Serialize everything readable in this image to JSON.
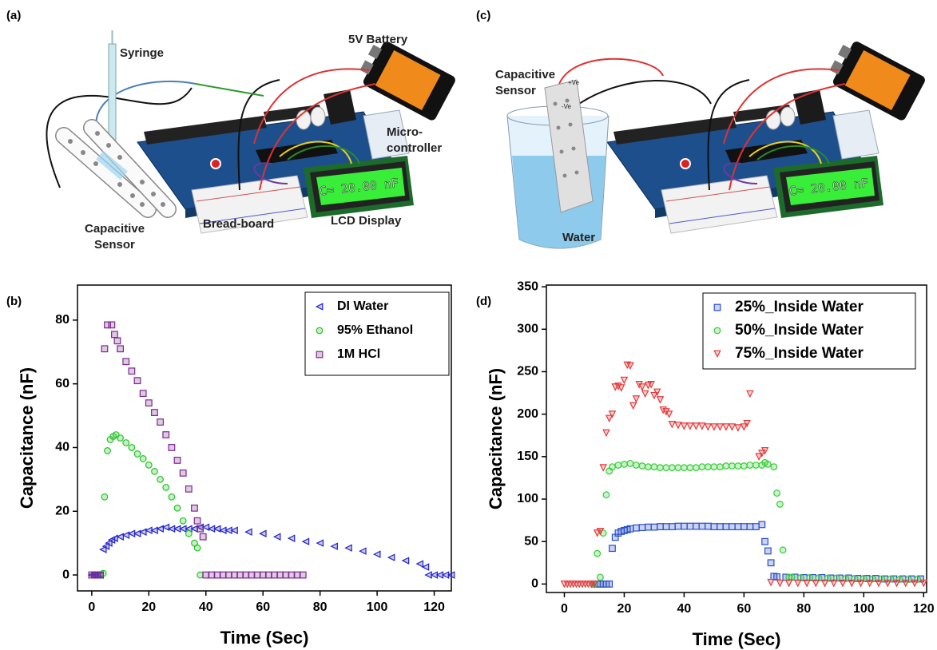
{
  "figure": {
    "panel_labels": [
      "(a)",
      "(b)",
      "(c)",
      "(d)"
    ],
    "panel_a": {
      "syringe": "Syringe",
      "battery": "5V Battery",
      "microcontroller": [
        "Micro-",
        "controller"
      ],
      "sensor": [
        "Capacitive",
        "Sensor"
      ],
      "breadboard": "Bread-board",
      "lcd": "LCD Display",
      "lcd_reading": "C= 20.00 nF"
    },
    "panel_c": {
      "sensor": [
        "Capacitive",
        "Sensor"
      ],
      "positive": "+Ve",
      "negative": "-Ve",
      "water": "Water",
      "lcd_reading": "C= 20.00 nF"
    }
  },
  "chart_data": [
    {
      "type": "scatter",
      "x_label": "Time (Sec)",
      "y_label": "Capacitance (nF)",
      "xlim": [
        -5,
        126
      ],
      "ylim": [
        -5,
        91
      ],
      "xticks": [
        0,
        20,
        40,
        60,
        80,
        100,
        120
      ],
      "yticks": [
        0,
        20,
        40,
        60,
        80
      ],
      "grid": false,
      "legend": "upper right",
      "series": [
        {
          "name": "DI Water",
          "color": "#2323c8",
          "marker": "triangle-left",
          "x": [
            0,
            1,
            2,
            3,
            4,
            5,
            6,
            7,
            8,
            10,
            12,
            14,
            16,
            18,
            20,
            22,
            24,
            26,
            28,
            30,
            32,
            34,
            36,
            38,
            40,
            42,
            44,
            46,
            48,
            50,
            55,
            60,
            65,
            70,
            75,
            80,
            85,
            90,
            95,
            100,
            105,
            110,
            115,
            117,
            118,
            120,
            122,
            124,
            126
          ],
          "values": [
            0,
            0,
            0,
            0,
            8,
            9,
            10,
            11,
            11.5,
            12,
            12.5,
            13,
            13,
            13.5,
            14,
            14,
            14.5,
            15,
            14.5,
            14.5,
            14.5,
            14.5,
            14.5,
            15,
            15,
            14.5,
            14.5,
            14,
            14,
            14,
            13.5,
            13,
            12,
            11.5,
            10.5,
            10,
            9,
            8.5,
            7.5,
            6.5,
            5.5,
            4.5,
            3.5,
            2.5,
            0,
            0,
            0,
            0,
            0
          ]
        },
        {
          "name": "95% Ethanol",
          "color": "#22c422",
          "marker": "circle",
          "x": [
            4,
            4.5,
            5.5,
            6.5,
            7.5,
            8.5,
            10,
            12,
            14,
            16,
            18,
            20,
            22,
            24,
            26,
            28,
            30,
            32,
            34,
            36,
            37,
            38
          ],
          "values": [
            0.5,
            24.5,
            39,
            42.5,
            43.5,
            44,
            43,
            41.5,
            40,
            38,
            36.5,
            34.5,
            32.5,
            30,
            27.5,
            24.5,
            21,
            17,
            13,
            10,
            8.5,
            0
          ]
        },
        {
          "name": "1M HCl",
          "color": "#7b2a8c",
          "marker": "square",
          "x": [
            0,
            1,
            2,
            3,
            4.5,
            5.5,
            7,
            8,
            9,
            10,
            12,
            14,
            16,
            18,
            20,
            22,
            24,
            26,
            28,
            30,
            32,
            34,
            36,
            37,
            38,
            39,
            40,
            42,
            44,
            46,
            48,
            50,
            52,
            54,
            56,
            58,
            60,
            62,
            64,
            66,
            68,
            70,
            72,
            74
          ],
          "values": [
            0,
            0,
            0,
            0,
            71,
            78.5,
            78.5,
            75.5,
            73.5,
            71,
            67,
            64,
            61,
            57,
            54,
            51,
            48,
            44,
            40,
            36,
            32,
            27,
            21,
            17,
            14.5,
            12,
            0,
            0,
            0,
            0,
            0,
            0,
            0,
            0,
            0,
            0,
            0,
            0,
            0,
            0,
            0,
            0,
            0,
            0
          ]
        }
      ]
    },
    {
      "type": "scatter",
      "x_label": "Time (Sec)",
      "y_label": "Capacitance (nF)",
      "xlim": [
        -6,
        121
      ],
      "ylim": [
        -10,
        352
      ],
      "xticks": [
        0,
        20,
        40,
        60,
        80,
        100,
        120
      ],
      "yticks": [
        0,
        50,
        100,
        150,
        200,
        250,
        300,
        350
      ],
      "grid": false,
      "legend": "upper right",
      "series": [
        {
          "name": "25%_Inside Water",
          "color": "#2b4fc8",
          "marker": "square",
          "x": [
            10,
            11,
            12,
            13,
            14,
            15,
            16,
            17,
            18,
            19,
            20,
            21,
            22,
            24,
            26,
            28,
            30,
            32,
            34,
            36,
            38,
            40,
            42,
            44,
            46,
            48,
            50,
            52,
            54,
            56,
            58,
            60,
            62,
            64,
            66,
            67,
            68,
            69,
            70,
            71,
            74,
            77,
            80,
            83,
            86,
            89,
            92,
            95,
            98,
            101,
            104,
            107,
            110,
            113,
            116,
            119
          ],
          "values": [
            0,
            0,
            0,
            0,
            0,
            0,
            42,
            55,
            60,
            62,
            63,
            64,
            65,
            66,
            66.5,
            67,
            67,
            67.5,
            67.5,
            67.5,
            68,
            68,
            68,
            68,
            68,
            68,
            67.5,
            67.5,
            67.5,
            67.5,
            67.5,
            67.5,
            67.5,
            67.5,
            70,
            50,
            39,
            25,
            9,
            8.5,
            8,
            8,
            7.5,
            7.5,
            7.5,
            7,
            7,
            7,
            6.5,
            6.5,
            6.5,
            6,
            6,
            6,
            6,
            6
          ]
        },
        {
          "name": "50%_Inside Water",
          "color": "#33cc33",
          "marker": "circle",
          "x": [
            10,
            11,
            12,
            13,
            14,
            15,
            16,
            18,
            20,
            22,
            24,
            26,
            28,
            30,
            32,
            34,
            36,
            38,
            40,
            42,
            44,
            46,
            48,
            50,
            52,
            54,
            56,
            58,
            60,
            62,
            64,
            66,
            67,
            68,
            70,
            71,
            72,
            73,
            75,
            76,
            79,
            82,
            85,
            88,
            91,
            94,
            97,
            100,
            103,
            106,
            109,
            112,
            115,
            118
          ],
          "values": [
            0,
            36,
            8,
            60,
            105,
            133,
            138,
            140,
            141,
            142,
            140,
            139,
            138,
            138,
            137,
            137,
            137,
            137,
            137,
            137,
            137,
            138,
            138,
            138,
            138,
            139,
            139,
            139,
            139,
            140,
            140,
            140,
            143,
            141,
            138,
            107,
            94,
            40,
            8,
            8,
            7.5,
            7.5,
            7,
            7,
            7,
            6.5,
            6.5,
            6.5,
            6,
            6,
            6,
            5.5,
            5.5,
            5.5
          ]
        },
        {
          "name": "75%_Inside Water",
          "color": "#e33a3a",
          "marker": "triangle-down",
          "x": [
            0,
            1,
            2,
            3,
            4,
            5,
            6,
            7,
            8,
            9,
            10,
            11,
            12,
            13,
            14,
            15,
            16,
            17,
            18,
            19,
            20,
            21,
            22,
            23,
            24,
            25,
            26,
            27,
            28,
            29,
            30,
            31,
            32,
            33,
            34,
            35,
            36,
            38,
            40,
            42,
            44,
            46,
            48,
            50,
            52,
            54,
            56,
            58,
            60,
            61,
            62,
            65,
            66,
            67,
            69,
            72,
            75,
            78,
            81,
            84,
            87,
            90,
            93,
            96,
            99,
            102,
            105,
            108,
            111,
            114,
            117,
            120
          ],
          "values": [
            0,
            0,
            0,
            0,
            0,
            0,
            0,
            0,
            0,
            0,
            0,
            60,
            62,
            137,
            178,
            195,
            200,
            232,
            233,
            231,
            240,
            258,
            257,
            210,
            218,
            235,
            232,
            224,
            234,
            235,
            222,
            226,
            217,
            205,
            203,
            200,
            188,
            187,
            186,
            186,
            186,
            186,
            185,
            185,
            185,
            185,
            185,
            184,
            185,
            189,
            224,
            150,
            154,
            157,
            2,
            1,
            1,
            1,
            1,
            1,
            1,
            1,
            1,
            1,
            1,
            1,
            1,
            1,
            1,
            1,
            1,
            1
          ]
        }
      ]
    }
  ]
}
